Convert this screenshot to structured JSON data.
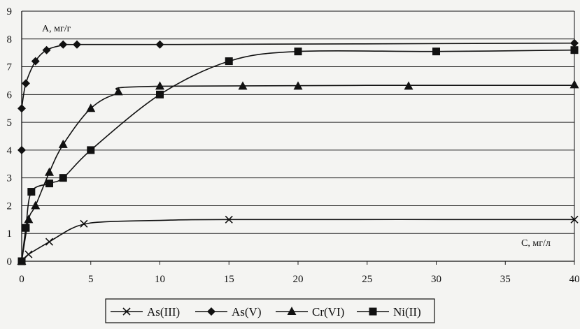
{
  "chart_data": {
    "type": "line",
    "ylabel": "A, мг/г",
    "xlabel": "C, мг/л",
    "xlim": [
      0,
      40
    ],
    "ylim": [
      0,
      9
    ],
    "xticks": [
      "0",
      "5",
      "10",
      "15",
      "20",
      "25",
      "30",
      "35",
      "40"
    ],
    "yticks": [
      "0",
      "1",
      "2",
      "3",
      "4",
      "5",
      "6",
      "7",
      "8",
      "9"
    ],
    "grid": "horizontal",
    "legend_position": "bottom",
    "series": [
      {
        "name": "As(III)",
        "marker": "x",
        "points": [
          [
            0,
            0
          ],
          [
            0.5,
            0.25
          ],
          [
            2,
            0.7
          ],
          [
            4.5,
            1.35
          ],
          [
            15,
            1.5
          ],
          [
            40,
            1.5
          ]
        ],
        "curve": [
          [
            0,
            0
          ],
          [
            0.5,
            0.25
          ],
          [
            2,
            0.7
          ],
          [
            3.5,
            1.15
          ],
          [
            4.5,
            1.33
          ],
          [
            6,
            1.42
          ],
          [
            10,
            1.47
          ],
          [
            15,
            1.5
          ],
          [
            40,
            1.5
          ]
        ]
      },
      {
        "name": "As(V)",
        "marker": "diamond",
        "points": [
          [
            0,
            4.0
          ],
          [
            0,
            5.5
          ],
          [
            0.3,
            6.4
          ],
          [
            1,
            7.2
          ],
          [
            1.8,
            7.6
          ],
          [
            3,
            7.8
          ],
          [
            4,
            7.8
          ],
          [
            10,
            7.8
          ],
          [
            40,
            7.85
          ]
        ],
        "curve": [
          [
            0,
            5.5
          ],
          [
            0.3,
            6.4
          ],
          [
            1,
            7.2
          ],
          [
            1.8,
            7.6
          ],
          [
            3,
            7.78
          ],
          [
            4,
            7.8
          ],
          [
            10,
            7.8
          ],
          [
            40,
            7.85
          ]
        ]
      },
      {
        "name": "Cr(VI)",
        "marker": "triangle",
        "points": [
          [
            0,
            0
          ],
          [
            0.5,
            1.5
          ],
          [
            1,
            2.0
          ],
          [
            2,
            3.2
          ],
          [
            3,
            4.2
          ],
          [
            5,
            5.5
          ],
          [
            7,
            6.1
          ],
          [
            10,
            6.3
          ],
          [
            16,
            6.3
          ],
          [
            20,
            6.3
          ],
          [
            28,
            6.3
          ],
          [
            40,
            6.35
          ]
        ],
        "curve": [
          [
            0,
            0
          ],
          [
            0.5,
            1.5
          ],
          [
            1,
            2.0
          ],
          [
            2,
            3.2
          ],
          [
            3,
            4.2
          ],
          [
            5,
            5.5
          ],
          [
            7,
            6.05
          ],
          [
            10,
            6.3
          ],
          [
            40,
            6.33
          ]
        ]
      },
      {
        "name": "Ni(II)",
        "marker": "square",
        "points": [
          [
            0,
            0
          ],
          [
            0.3,
            1.2
          ],
          [
            0.7,
            2.5
          ],
          [
            2,
            2.8
          ],
          [
            3,
            3.0
          ],
          [
            5,
            4.0
          ],
          [
            10,
            6.0
          ],
          [
            15,
            7.2
          ],
          [
            20,
            7.55
          ],
          [
            30,
            7.55
          ],
          [
            40,
            7.6
          ]
        ],
        "curve": [
          [
            0,
            0
          ],
          [
            0.3,
            1.2
          ],
          [
            0.7,
            2.5
          ],
          [
            2,
            2.8
          ],
          [
            3,
            3.0
          ],
          [
            5,
            4.0
          ],
          [
            10,
            6.0
          ],
          [
            15,
            7.2
          ],
          [
            20,
            7.55
          ],
          [
            30,
            7.55
          ],
          [
            40,
            7.6
          ]
        ]
      }
    ]
  }
}
